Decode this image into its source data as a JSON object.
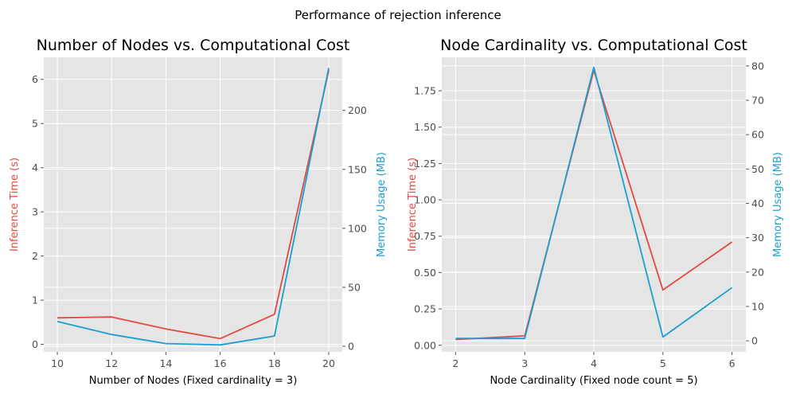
{
  "suptitle": "Performance of rejection inference",
  "colors": {
    "time": "#e24a41",
    "memory": "#1a9fd0",
    "panel_bg": "#e5e5e5",
    "grid": "#ffffff"
  },
  "chart_data": [
    {
      "type": "line",
      "title": "Number of Nodes vs. Computational Cost",
      "xlabel": "Number of Nodes (Fixed cardinality = 3)",
      "ylabel_left": "Inference Time (s)",
      "ylabel_right": "Memory Usage (MB)",
      "x": [
        10,
        12,
        14,
        16,
        18,
        20
      ],
      "xlim": [
        9.5,
        20.5
      ],
      "xticks": [
        10,
        12,
        14,
        16,
        18,
        20
      ],
      "ylim_left": [
        -0.17,
        6.5
      ],
      "yticks_left": [
        0,
        1,
        2,
        3,
        4,
        5,
        6
      ],
      "ylim_right": [
        -4.7,
        245
      ],
      "yticks_right": [
        0,
        50,
        100,
        150,
        200
      ],
      "grid": true,
      "series": [
        {
          "name": "Inference Time (s)",
          "axis": "left",
          "color": "#e24a41",
          "values": [
            0.6,
            0.62,
            0.35,
            0.13,
            0.68,
            6.2
          ]
        },
        {
          "name": "Memory Usage (MB)",
          "axis": "right",
          "color": "#1a9fd0",
          "values": [
            21,
            10,
            2.3,
            1.2,
            8.7,
            236
          ]
        }
      ]
    },
    {
      "type": "line",
      "title": "Node Cardinality vs. Computational Cost",
      "xlabel": "Node Cardinality (Fixed node count = 5)",
      "ylabel_left": "Inference Time (s)",
      "ylabel_right": "Memory Usage (MB)",
      "x": [
        2,
        3,
        4,
        5,
        6
      ],
      "xlim": [
        1.8,
        6.2
      ],
      "xticks": [
        2,
        3,
        4,
        5,
        6
      ],
      "ylim_left": [
        -0.045,
        1.98
      ],
      "yticks_left": [
        0.0,
        0.25,
        0.5,
        0.75,
        1.0,
        1.25,
        1.5,
        1.75
      ],
      "ylim_right": [
        -3.2,
        82.5
      ],
      "yticks_right": [
        0,
        10,
        20,
        30,
        40,
        50,
        60,
        70,
        80
      ],
      "grid": true,
      "series": [
        {
          "name": "Inference Time (s)",
          "axis": "left",
          "color": "#e24a41",
          "values": [
            0.04,
            0.065,
            1.89,
            0.38,
            0.71
          ]
        },
        {
          "name": "Memory Usage (MB)",
          "axis": "right",
          "color": "#1a9fd0",
          "values": [
            0.7,
            0.7,
            79.6,
            1.1,
            15.5
          ]
        }
      ]
    }
  ]
}
